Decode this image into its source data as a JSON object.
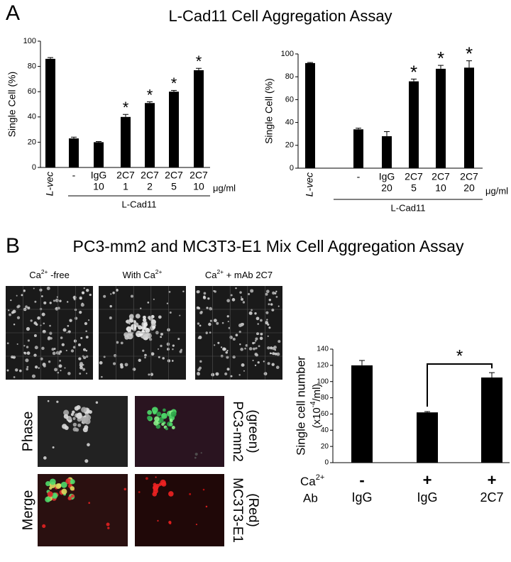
{
  "panel_a": {
    "label": "A",
    "title": "L-Cad11 Cell Aggregation Assay"
  },
  "panel_b": {
    "label": "B",
    "title": "PC3-mm2 and MC3T3-E1 Mix Cell Aggregation Assay",
    "image_captions": [
      {
        "base": "Ca",
        "sup": "2+",
        "rest": " -free"
      },
      {
        "base": "With Ca",
        "sup": "2+",
        "rest": ""
      },
      {
        "base": "Ca",
        "sup": "2+",
        "rest": " + mAb 2C7"
      }
    ],
    "row_labels": [
      "Phase",
      "Merge"
    ],
    "stain_labels": [
      [
        "PC3-mm2",
        "(green)"
      ],
      [
        "MC3T3-E1",
        "(Red)"
      ]
    ]
  },
  "chart_data": [
    {
      "type": "bar",
      "y_label": "Single Cell (%)",
      "categories": [
        "L-vec",
        "-",
        "IgG",
        "2C7",
        "2C7",
        "2C7",
        "2C7"
      ],
      "doses": [
        null,
        null,
        "10",
        "1",
        "2",
        "5",
        "10"
      ],
      "dose_unit": "μg/ml",
      "group_label": "L-Cad11",
      "values": [
        86,
        23,
        20,
        40,
        51,
        60,
        77
      ],
      "errors": [
        1,
        1,
        0.5,
        2,
        1,
        1,
        1.5
      ],
      "significance": [
        null,
        null,
        null,
        "*",
        "*",
        "*",
        "*"
      ],
      "color": "#000000",
      "ylim": [
        0,
        100
      ],
      "yticks": [
        0,
        20,
        40,
        60,
        80,
        100
      ]
    },
    {
      "type": "bar",
      "y_label": "Single Cell (%)",
      "categories": [
        "L-vec",
        "-",
        "IgG",
        "2C7",
        "2C7",
        "2C7"
      ],
      "doses": [
        null,
        null,
        "20",
        "5",
        "10",
        "20"
      ],
      "dose_unit": "μg/ml",
      "group_label": "L-Cad11",
      "values": [
        92,
        34,
        28,
        76,
        87,
        88
      ],
      "errors": [
        0.5,
        1,
        4,
        2,
        3,
        6
      ],
      "significance": [
        null,
        null,
        null,
        "*",
        "*",
        "*"
      ],
      "color": "#000000",
      "ylim": [
        0,
        100
      ],
      "yticks": [
        0,
        20,
        40,
        60,
        80,
        100
      ]
    },
    {
      "type": "bar",
      "y_label": "Single cell number",
      "y_unit": {
        "base": "(x10",
        "sup": "-4",
        "rest": "/ml)"
      },
      "categories": [
        "IgG",
        "IgG",
        "2C7"
      ],
      "row_label": "Ab",
      "ca_label": {
        "base": "Ca",
        "sup": "2+"
      },
      "ca_values": [
        "-",
        "+",
        "+"
      ],
      "values": [
        120,
        62,
        105
      ],
      "errors": [
        6,
        1,
        6
      ],
      "significance": [
        null,
        null,
        "*"
      ],
      "color": "#000000",
      "ylim": [
        0,
        140
      ],
      "yticks": [
        0,
        20,
        40,
        60,
        80,
        100,
        120,
        140
      ]
    }
  ]
}
